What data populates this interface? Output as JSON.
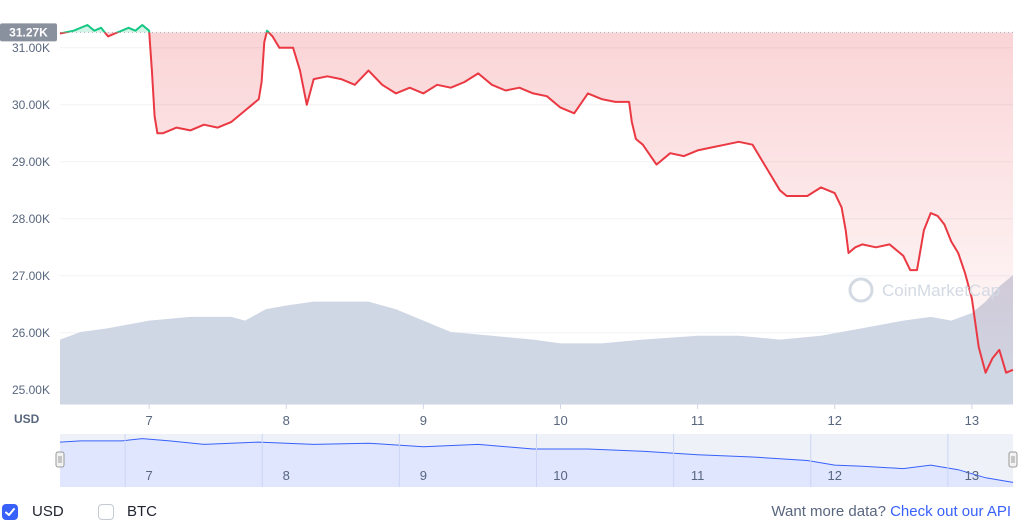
{
  "chart_data": {
    "type": "line",
    "y_ticks": [
      "31.00K",
      "30.00K",
      "29.00K",
      "28.00K",
      "27.00K",
      "26.00K",
      "25.00K"
    ],
    "y_tick_values": [
      31000,
      30000,
      29000,
      28000,
      27000,
      26000,
      25000
    ],
    "x_ticks": [
      "7",
      "8",
      "9",
      "10",
      "11",
      "12",
      "13"
    ],
    "x_tick_values": [
      7,
      8,
      9,
      10,
      11,
      12,
      13
    ],
    "currency_label": "USD",
    "current_price_label": "31.27K",
    "reference_price": 31270,
    "ylim": [
      24750,
      31400
    ],
    "xlim": [
      6.35,
      13.3
    ],
    "colors": {
      "up": "#16c784",
      "down": "#ea3943",
      "volume": "#cfd6e4",
      "navigator_fill": "#dfe6fd",
      "navigator_line": "#3861fb"
    },
    "series": [
      {
        "x": [
          6.35,
          6.45,
          6.55,
          6.6,
          6.65,
          6.7,
          6.75,
          6.8,
          6.85,
          6.9,
          6.95,
          7.0,
          7.02,
          7.04,
          7.06,
          7.1,
          7.15,
          7.2,
          7.3,
          7.4,
          7.5,
          7.6,
          7.7,
          7.75,
          7.8,
          7.82,
          7.84,
          7.86,
          7.9,
          7.95,
          8.0,
          8.05,
          8.1,
          8.15,
          8.2,
          8.3,
          8.4,
          8.5,
          8.6,
          8.7,
          8.8,
          8.9,
          9.0,
          9.1,
          9.2,
          9.3,
          9.4,
          9.5,
          9.6,
          9.7,
          9.8,
          9.9,
          10.0,
          10.1,
          10.2,
          10.3,
          10.4,
          10.5,
          10.52,
          10.55,
          10.6,
          10.7,
          10.8,
          10.9,
          11.0,
          11.1,
          11.2,
          11.3,
          11.4,
          11.5,
          11.6,
          11.65,
          11.7,
          11.8,
          11.9,
          12.0,
          12.05,
          12.08,
          12.1,
          12.15,
          12.2,
          12.3,
          12.4,
          12.5,
          12.55,
          12.6,
          12.65,
          12.7,
          12.75,
          12.8,
          12.85,
          12.9,
          12.95,
          13.0,
          13.05,
          13.1,
          13.15,
          13.2,
          13.25,
          13.3
        ],
        "y": [
          31250,
          31300,
          31400,
          31300,
          31350,
          31200,
          31250,
          31300,
          31350,
          31300,
          31400,
          31300,
          30600,
          29800,
          29500,
          29500,
          29550,
          29600,
          29550,
          29650,
          29600,
          29700,
          29900,
          30000,
          30100,
          30400,
          31100,
          31300,
          31200,
          31000,
          31000,
          31000,
          30600,
          30000,
          30450,
          30500,
          30450,
          30350,
          30600,
          30350,
          30200,
          30300,
          30200,
          30350,
          30300,
          30400,
          30550,
          30350,
          30250,
          30300,
          30200,
          30150,
          29950,
          29850,
          30200,
          30100,
          30050,
          30050,
          29700,
          29400,
          29300,
          28950,
          29150,
          29100,
          29200,
          29250,
          29300,
          29350,
          29300,
          28900,
          28500,
          28400,
          28400,
          28400,
          28550,
          28450,
          28200,
          27800,
          27400,
          27500,
          27550,
          27500,
          27550,
          27350,
          27100,
          27100,
          27800,
          28100,
          28050,
          27900,
          27600,
          27400,
          27050,
          26600,
          25750,
          25300,
          25550,
          25700,
          25300,
          25350
        ]
      }
    ],
    "volume": {
      "x": [
        6.35,
        6.5,
        6.7,
        7.0,
        7.3,
        7.6,
        7.7,
        7.85,
        8.0,
        8.2,
        8.4,
        8.6,
        8.8,
        9.0,
        9.2,
        9.5,
        9.8,
        10.0,
        10.3,
        10.6,
        11.0,
        11.3,
        11.6,
        11.9,
        12.2,
        12.5,
        12.7,
        12.85,
        13.0,
        13.1,
        13.2,
        13.3
      ],
      "level": [
        0.17,
        0.19,
        0.2,
        0.22,
        0.23,
        0.23,
        0.22,
        0.25,
        0.26,
        0.27,
        0.27,
        0.27,
        0.25,
        0.22,
        0.19,
        0.18,
        0.17,
        0.16,
        0.16,
        0.17,
        0.18,
        0.18,
        0.17,
        0.18,
        0.2,
        0.22,
        0.23,
        0.22,
        0.24,
        0.27,
        0.31,
        0.34
      ]
    },
    "navigator": {
      "x": [
        6.35,
        6.5,
        6.8,
        6.95,
        7.15,
        7.4,
        7.8,
        8.2,
        8.6,
        9.0,
        9.4,
        9.8,
        10.2,
        10.6,
        11.0,
        11.4,
        11.8,
        12.0,
        12.2,
        12.5,
        12.7,
        12.9,
        13.1,
        13.3
      ],
      "y": [
        31250,
        31300,
        31300,
        31400,
        31300,
        31150,
        31250,
        31150,
        31200,
        31050,
        31150,
        30950,
        30950,
        30850,
        30700,
        30600,
        30450,
        30250,
        30200,
        30100,
        30250,
        30050,
        29700,
        29500
      ],
      "ylim": [
        29300,
        31600
      ]
    },
    "watermark": "CoinMarketCap"
  },
  "footer": {
    "usd_label": "USD",
    "btc_label": "BTC",
    "usd_checked": true,
    "btc_checked": false,
    "api_prefix": "Want more data?",
    "api_link": "Check out our API"
  }
}
